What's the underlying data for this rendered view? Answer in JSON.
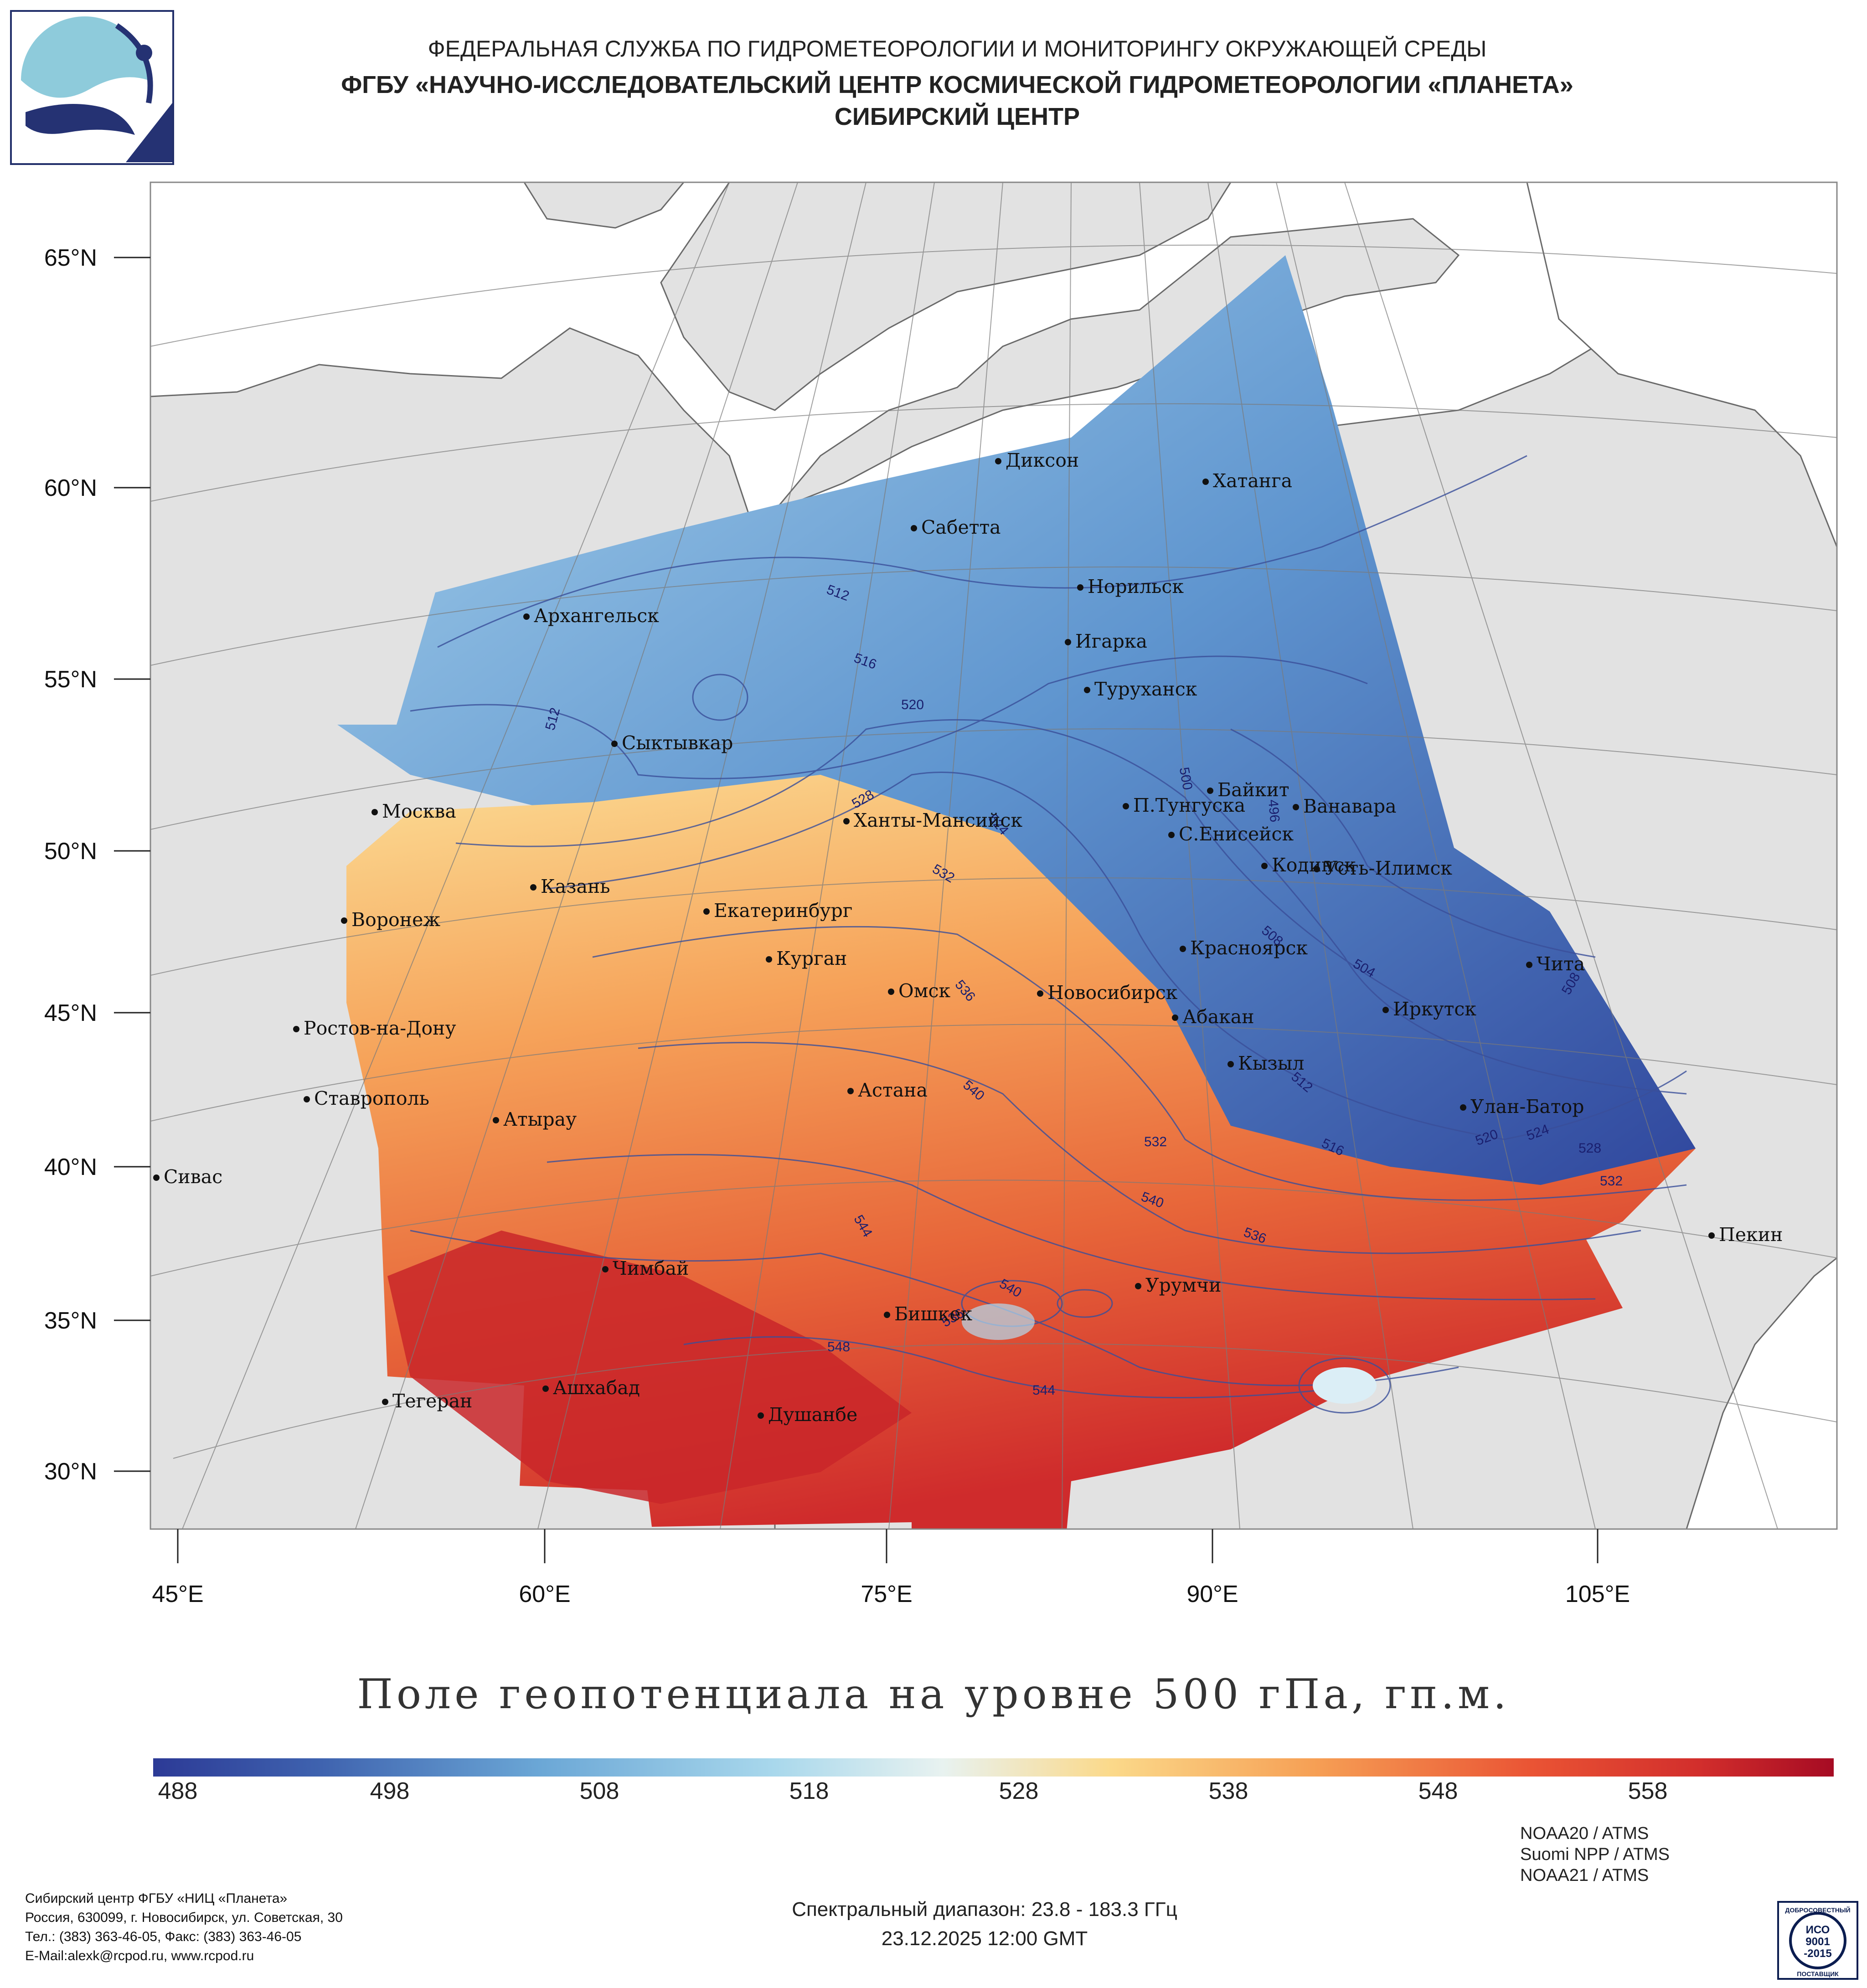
{
  "header": {
    "line1": "ФЕДЕРАЛЬНАЯ СЛУЖБА ПО ГИДРОМЕТЕОРОЛОГИИ И МОНИТОРИНГУ ОКРУЖАЮЩЕЙ СРЕДЫ",
    "line2": "ФГБУ «НАУЧНО-ИССЛЕДОВАТЕЛЬСКИЙ ЦЕНТР КОСМИЧЕСКОЙ ГИДРОМЕТЕОРОЛОГИИ «ПЛАНЕТА»",
    "line3": "СИБИРСКИЙ ЦЕНТР"
  },
  "axes": {
    "lat_labels": [
      "65°N",
      "60°N",
      "55°N",
      "50°N",
      "45°N",
      "40°N",
      "35°N",
      "30°N"
    ],
    "lon_labels": [
      "45°E",
      "60°E",
      "75°E",
      "90°E",
      "105°E"
    ]
  },
  "cities": [
    "Диксон",
    "Хатанга",
    "Сабетта",
    "Норильск",
    "Архангельск",
    "Игарка",
    "Туруханск",
    "Сыктывкар",
    "Байкит",
    "Москва",
    "П.Тунгуска",
    "Ванавара",
    "Ханты-Мансийск",
    "С.Енисейск",
    "Кодинск",
    "Усть-Илимск",
    "Казань",
    "Екатеринбург",
    "Воронеж",
    "Красноярск",
    "Курган",
    "Чита",
    "Омск",
    "Новосибирск",
    "Иркутск",
    "Абакан",
    "Ростов-на-Дону",
    "Кызыл",
    "Астана",
    "Ставрополь",
    "Улан-Батор",
    "Атырау",
    "Сивас",
    "Пекин",
    "Чимбай",
    "Урумчи",
    "Бишкек",
    "Ашхабад",
    "Тегеран",
    "Душанбе"
  ],
  "contour_labels": [
    "512",
    "516",
    "520",
    "512",
    "528",
    "524",
    "532",
    "500",
    "496",
    "508",
    "504",
    "508",
    "536",
    "540",
    "512",
    "516",
    "520",
    "524",
    "528",
    "532",
    "532",
    "540",
    "536",
    "544",
    "540",
    "536",
    "548",
    "544"
  ],
  "colorbar": {
    "title": "Поле геопотенциала на уровне 500 гПа, гп.м.",
    "ticks": [
      "488",
      "498",
      "508",
      "518",
      "528",
      "538",
      "548",
      "558"
    ],
    "low_color": "#2c3a96",
    "mid_color": "#e8f2f0",
    "high_color": "#a60b23"
  },
  "footer": {
    "address_lines": [
      "Сибирский центр ФГБУ «НИЦ «Планета»",
      "Россия, 630099, г. Новосибирск, ул. Советская, 30",
      "Тел.: (383) 363-46-05, Факс: (383) 363-46-05",
      "E-Mail:alexk@rcpod.ru, www.rcpod.ru"
    ],
    "spectral": "Спектральный диапазон: 23.8 - 183.3 ГГц",
    "datetime": "23.12.2025 12:00 GMT",
    "satellites": [
      "NOAA20 / ATMS",
      "Suomi NPP / ATMS",
      "NOAA21 / ATMS"
    ],
    "iso_lines": [
      "ДОБРОСОВЕСТНЫЙ",
      "ИСО",
      "9001",
      "-2015",
      "ПОСТАВЩИК"
    ]
  }
}
